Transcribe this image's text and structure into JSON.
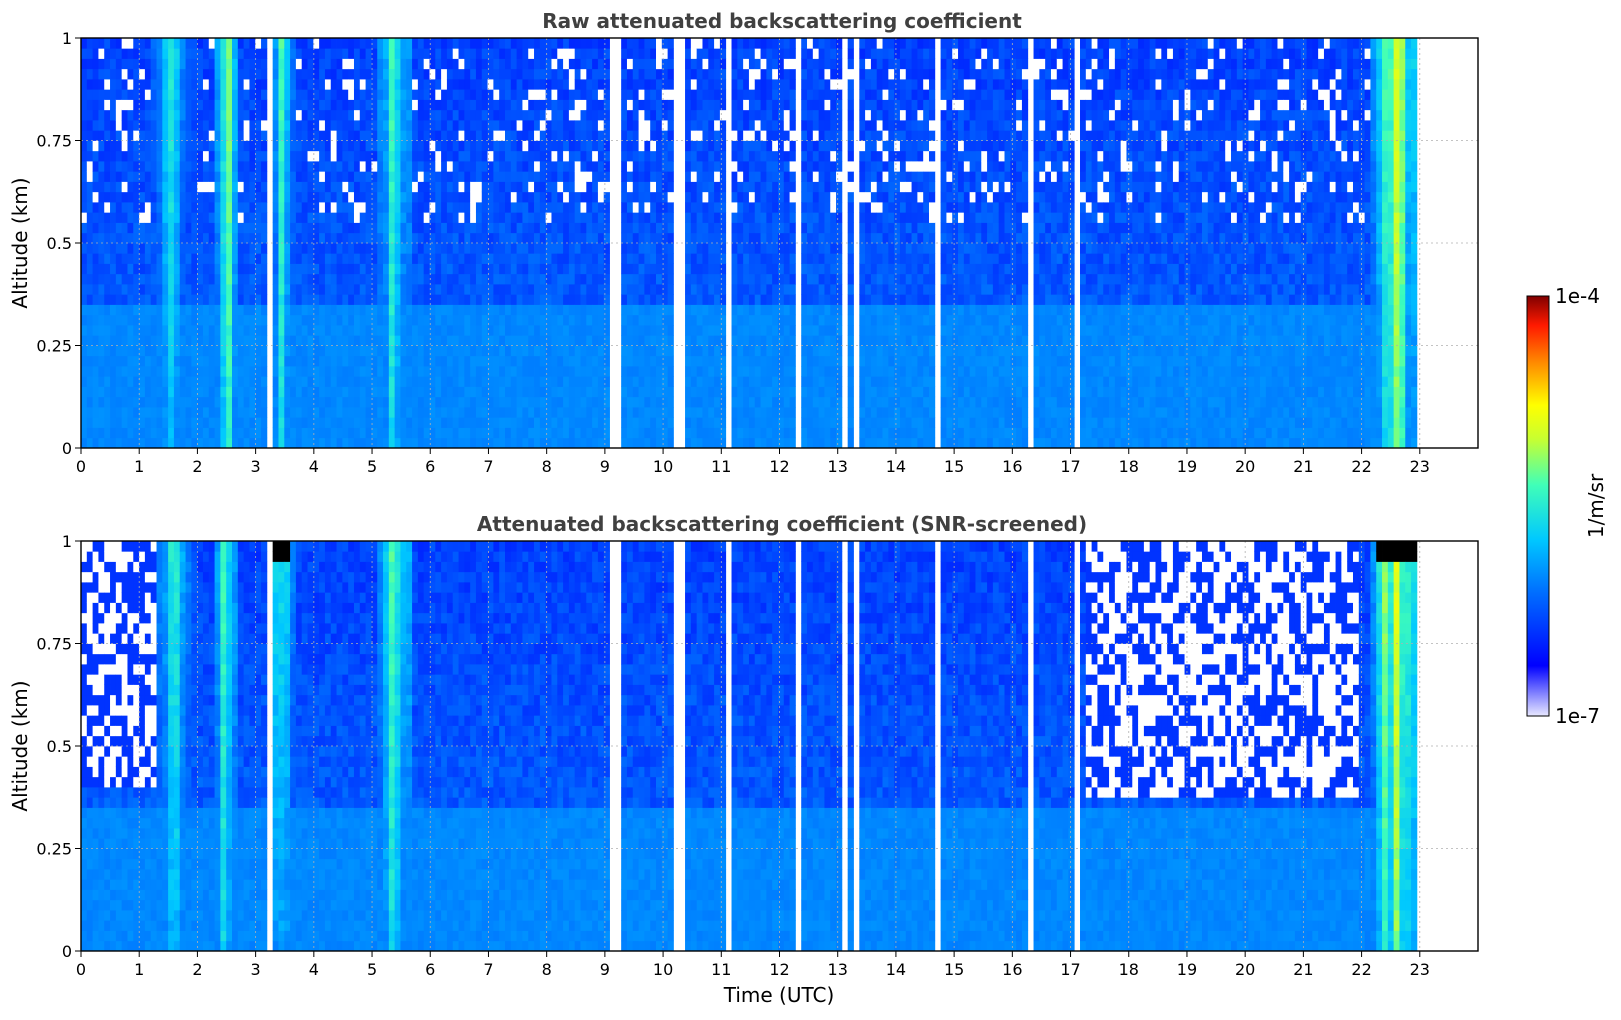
{
  "chart_data": [
    {
      "type": "heatmap",
      "title": "Raw attenuated backscattering coefficient",
      "xlabel": "",
      "ylabel": "Altitude (km)",
      "xlim": [
        0,
        24
      ],
      "ylim": [
        0,
        1
      ],
      "x_ticks": [
        "0",
        "1",
        "2",
        "3",
        "4",
        "5",
        "6",
        "7",
        "8",
        "9",
        "10",
        "11",
        "12",
        "13",
        "14",
        "15",
        "16",
        "17",
        "18",
        "19",
        "20",
        "21",
        "22",
        "23"
      ],
      "y_ticks": [
        "0",
        "0.25",
        "0.5",
        "0.75",
        "1"
      ],
      "data_x_range": [
        0,
        22.95
      ],
      "grid": true,
      "colormap": "jet",
      "screened": false,
      "profile_bands": [
        {
          "x": [
            1.2,
            2.0
          ],
          "level": 0.55
        },
        {
          "x": [
            2.3,
            2.65
          ],
          "level": 0.75
        },
        {
          "x": [
            3.2,
            3.7
          ],
          "level": 0.58
        },
        {
          "x": [
            5.1,
            5.65
          ],
          "level": 0.7
        },
        {
          "x": [
            22.2,
            22.95
          ],
          "level": 0.8
        }
      ],
      "data_gaps_utc": [
        3.22,
        9.18,
        10.18,
        10.3,
        11.1,
        12.3,
        13.12,
        13.35,
        14.7,
        16.35,
        17.15
      ]
    },
    {
      "type": "heatmap",
      "title": "Attenuated backscattering coefficient (SNR-screened)",
      "xlabel": "Time (UTC)",
      "ylabel": "Altitude (km)",
      "xlim": [
        0,
        24
      ],
      "ylim": [
        0,
        1
      ],
      "x_ticks": [
        "0",
        "1",
        "2",
        "3",
        "4",
        "5",
        "6",
        "7",
        "8",
        "9",
        "10",
        "11",
        "12",
        "13",
        "14",
        "15",
        "16",
        "17",
        "18",
        "19",
        "20",
        "21",
        "22",
        "23"
      ],
      "y_ticks": [
        "0",
        "0.25",
        "0.5",
        "0.75",
        "1"
      ],
      "data_x_range": [
        0,
        22.95
      ],
      "grid": true,
      "colormap": "jet",
      "screened": true,
      "screened_ceiling_km": [
        {
          "x": [
            0,
            1.3
          ],
          "altitude": 0.41
        },
        {
          "x": [
            17.3,
            22.0
          ],
          "altitude": 0.38
        }
      ],
      "data_gaps_utc": [
        3.22,
        9.18,
        10.18,
        10.3,
        11.1,
        12.3,
        13.12,
        13.35,
        14.7,
        16.35,
        17.15
      ]
    }
  ],
  "colorbar": {
    "label": "1/m/sr",
    "min_label": "1e-7",
    "max_label": "1e-4",
    "scale": "log",
    "range": [
      1e-07,
      0.0001
    ]
  }
}
